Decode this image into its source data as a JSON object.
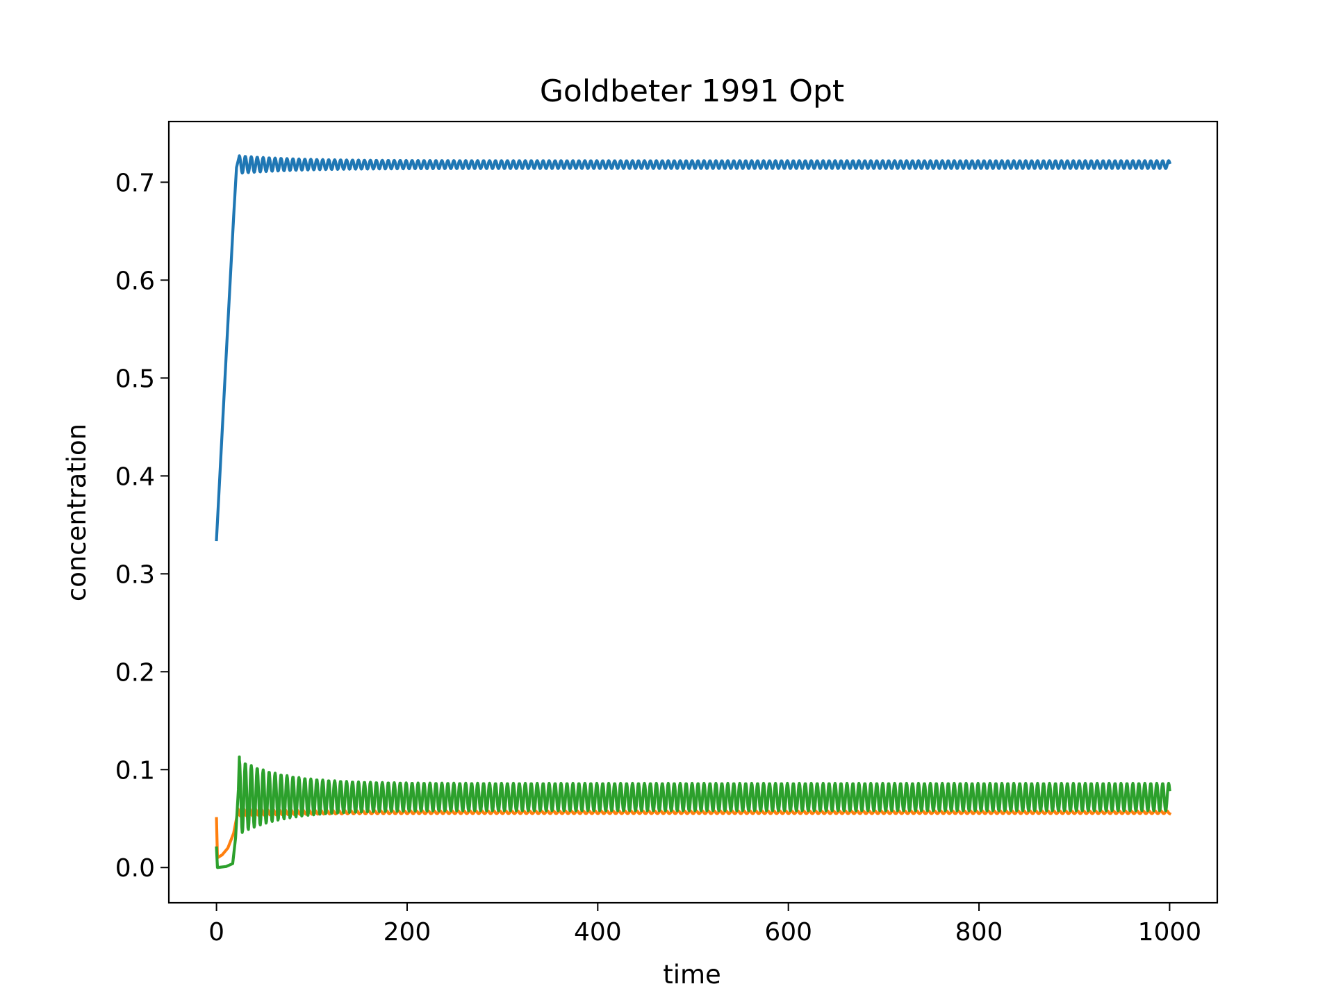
{
  "chart_data": {
    "type": "line",
    "title": "Goldbeter 1991 Opt",
    "xlabel": "time",
    "ylabel": "concentration",
    "xlim": [
      -50,
      1050
    ],
    "ylim": [
      -0.036,
      0.762
    ],
    "xticks": [
      0,
      200,
      400,
      600,
      800,
      1000
    ],
    "xtick_labels": [
      "0",
      "200",
      "400",
      "600",
      "800",
      "1000"
    ],
    "yticks": [
      0.0,
      0.1,
      0.2,
      0.3,
      0.4,
      0.5,
      0.6,
      0.7
    ],
    "ytick_labels": [
      "0.0",
      "0.1",
      "0.2",
      "0.3",
      "0.4",
      "0.5",
      "0.6",
      "0.7"
    ],
    "grid": false,
    "legend": "none",
    "series": [
      {
        "color": "#1f77b4",
        "initial": [
          [
            0,
            0.335
          ],
          [
            10,
            0.52
          ],
          [
            18,
            0.665
          ],
          [
            21,
            0.715
          ],
          [
            24,
            0.727
          ]
        ],
        "oscillation": {
          "start": 24,
          "end": 1000,
          "period": 6.25,
          "center": 0.718,
          "amp_start": 0.009,
          "amp_end": 0.004,
          "decay": 60
        }
      },
      {
        "color": "#ff7f0e",
        "initial": [
          [
            0,
            0.05
          ],
          [
            1,
            0.01
          ],
          [
            6,
            0.013
          ],
          [
            12,
            0.02
          ],
          [
            18,
            0.035
          ],
          [
            22,
            0.055
          ]
        ],
        "oscillation": {
          "start": 22,
          "end": 1000,
          "period": 6.25,
          "center": 0.0565,
          "amp_start": 0.004,
          "amp_end": 0.0015,
          "decay": 50
        }
      },
      {
        "color": "#2ca02c",
        "initial": [
          [
            0,
            0.02
          ],
          [
            1,
            0.0
          ],
          [
            10,
            0.001
          ],
          [
            17,
            0.004
          ],
          [
            20,
            0.03
          ],
          [
            23,
            0.08
          ],
          [
            24,
            0.113
          ]
        ],
        "oscillation": {
          "start": 24,
          "end": 1000,
          "period": 6.25,
          "center": 0.072,
          "amp_start": 0.038,
          "amp_end": 0.014,
          "decay": 45
        }
      }
    ]
  }
}
